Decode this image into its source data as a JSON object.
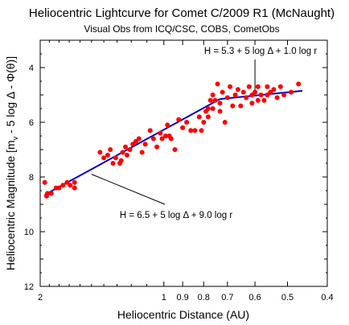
{
  "chart_data": {
    "type": "scatter",
    "title": "Heliocentric Lightcurve for Comet C/2009 R1 (McNaught)",
    "subtitle": "Visual Obs from ICQ/CSC, COBS, CometObs",
    "xlabel": "Heliocentric Distance (AU)",
    "ylabel": "Heliocentric Magnitude [m",
    "ylabel_sub": "v",
    "ylabel_tail": " - 5 log Δ - Φ(θ)]",
    "x_scale": "log",
    "x_reversed": true,
    "xlim": [
      2.0,
      0.4
    ],
    "y_reversed": true,
    "ylim": [
      12,
      3
    ],
    "x_tick_labels": [
      "2",
      "1",
      "0.9",
      "0.8",
      "0.7",
      "0.6",
      "0.5",
      "0.4"
    ],
    "x_ticks": [
      2,
      1,
      0.9,
      0.8,
      0.7,
      0.6,
      0.5,
      0.4
    ],
    "y_ticks": [
      4,
      6,
      8,
      10,
      12
    ],
    "y_tick_labels": [
      "4",
      "6",
      "8",
      "10",
      "12"
    ],
    "annotations": [
      {
        "text": "H = 5.3 + 5 log Δ + 1.0 log r",
        "target": [
          0.6,
          5.0
        ]
      },
      {
        "text": "H = 6.5 + 5 log Δ + 9.0 log r",
        "target": [
          1.5,
          7.9
        ]
      }
    ],
    "series": [
      {
        "role": "observations",
        "color": "#ff0000",
        "marker": "circle",
        "points": [
          [
            1.95,
            8.2
          ],
          [
            1.93,
            8.7
          ],
          [
            1.92,
            8.6
          ],
          [
            1.88,
            8.6
          ],
          [
            1.83,
            8.4
          ],
          [
            1.8,
            8.4
          ],
          [
            1.76,
            8.3
          ],
          [
            1.72,
            8.2
          ],
          [
            1.69,
            8.3
          ],
          [
            1.65,
            8.2
          ],
          [
            1.65,
            8.4
          ],
          [
            1.43,
            7.1
          ],
          [
            1.4,
            7.3
          ],
          [
            1.37,
            7.2
          ],
          [
            1.35,
            7.0
          ],
          [
            1.33,
            7.5
          ],
          [
            1.31,
            7.3
          ],
          [
            1.28,
            7.5
          ],
          [
            1.27,
            7.4
          ],
          [
            1.26,
            7.1
          ],
          [
            1.24,
            6.9
          ],
          [
            1.23,
            7.2
          ],
          [
            1.21,
            7.0
          ],
          [
            1.19,
            6.8
          ],
          [
            1.17,
            6.7
          ],
          [
            1.15,
            6.6
          ],
          [
            1.13,
            7.1
          ],
          [
            1.11,
            6.8
          ],
          [
            1.08,
            6.3
          ],
          [
            1.06,
            6.6
          ],
          [
            1.04,
            6.9
          ],
          [
            1.02,
            6.4
          ],
          [
            1.01,
            6.6
          ],
          [
            0.99,
            6.5
          ],
          [
            0.98,
            6.1
          ],
          [
            0.97,
            6.5
          ],
          [
            0.96,
            6.6
          ],
          [
            0.94,
            7.0
          ],
          [
            0.92,
            5.9
          ],
          [
            0.9,
            6.2
          ],
          [
            0.88,
            6.0
          ],
          [
            0.86,
            6.3
          ],
          [
            0.84,
            6.3
          ],
          [
            0.82,
            5.8
          ],
          [
            0.81,
            6.3
          ],
          [
            0.8,
            6.0
          ],
          [
            0.79,
            5.6
          ],
          [
            0.78,
            5.8
          ],
          [
            0.78,
            5.5
          ],
          [
            0.77,
            5.2
          ],
          [
            0.76,
            5.0
          ],
          [
            0.76,
            5.5
          ],
          [
            0.75,
            5.2
          ],
          [
            0.74,
            4.6
          ],
          [
            0.73,
            5.3
          ],
          [
            0.73,
            5.6
          ],
          [
            0.72,
            4.9
          ],
          [
            0.71,
            6.0
          ],
          [
            0.7,
            5.1
          ],
          [
            0.69,
            4.7
          ],
          [
            0.68,
            5.4
          ],
          [
            0.67,
            5.0
          ],
          [
            0.66,
            4.8
          ],
          [
            0.65,
            5.4
          ],
          [
            0.64,
            4.9
          ],
          [
            0.63,
            5.1
          ],
          [
            0.62,
            4.7
          ],
          [
            0.61,
            5.0
          ],
          [
            0.61,
            5.3
          ],
          [
            0.6,
            4.9
          ],
          [
            0.59,
            5.2
          ],
          [
            0.59,
            4.7
          ],
          [
            0.58,
            5.0
          ],
          [
            0.57,
            5.2
          ],
          [
            0.56,
            4.7
          ],
          [
            0.56,
            5.0
          ],
          [
            0.55,
            4.9
          ],
          [
            0.54,
            4.8
          ],
          [
            0.53,
            5.1
          ],
          [
            0.52,
            4.7
          ],
          [
            0.51,
            5.0
          ],
          [
            0.49,
            4.9
          ],
          [
            0.47,
            4.6
          ]
        ]
      },
      {
        "role": "fit-far",
        "color": "#0000cc",
        "type": "line",
        "points": [
          [
            1.95,
            8.65
          ],
          [
            0.73,
            5.15
          ]
        ]
      },
      {
        "role": "fit-near",
        "color": "#0000cc",
        "type": "line",
        "points": [
          [
            0.73,
            5.15
          ],
          [
            0.46,
            4.85
          ]
        ]
      }
    ]
  }
}
